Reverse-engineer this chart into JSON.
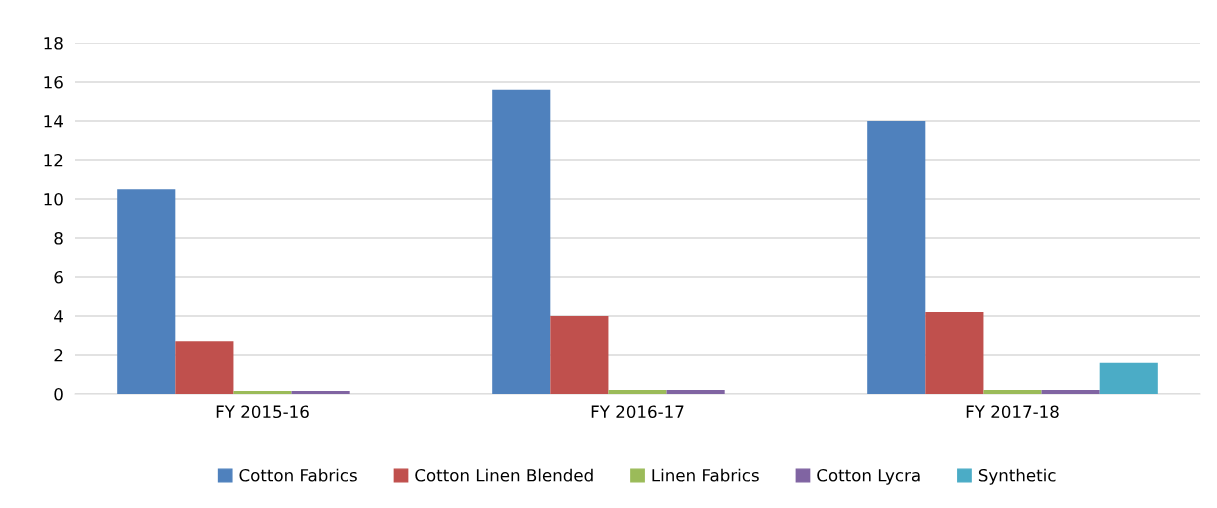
{
  "chart_data": {
    "type": "bar",
    "categories": [
      "FY 2015-16",
      "FY 2016-17",
      "FY 2017-18"
    ],
    "series": [
      {
        "name": "Cotton Fabrics",
        "color": "#4f81bd",
        "values": [
          10.5,
          15.6,
          14.0
        ]
      },
      {
        "name": "Cotton Linen Blended",
        "color": "#c0504d",
        "values": [
          2.7,
          4.0,
          4.2
        ]
      },
      {
        "name": "Linen Fabrics",
        "color": "#9bbb59",
        "values": [
          0.15,
          0.2,
          0.2
        ]
      },
      {
        "name": "Cotton Lycra",
        "color": "#8064a2",
        "values": [
          0.15,
          0.2,
          0.2
        ]
      },
      {
        "name": "Synthetic",
        "color": "#4bacc6",
        "values": [
          0,
          0,
          1.6
        ]
      }
    ],
    "ylim": [
      0,
      18
    ],
    "yticks": [
      0,
      2,
      4,
      6,
      8,
      10,
      12,
      14,
      16,
      18
    ],
    "grid": "y",
    "legend": "bottom"
  }
}
